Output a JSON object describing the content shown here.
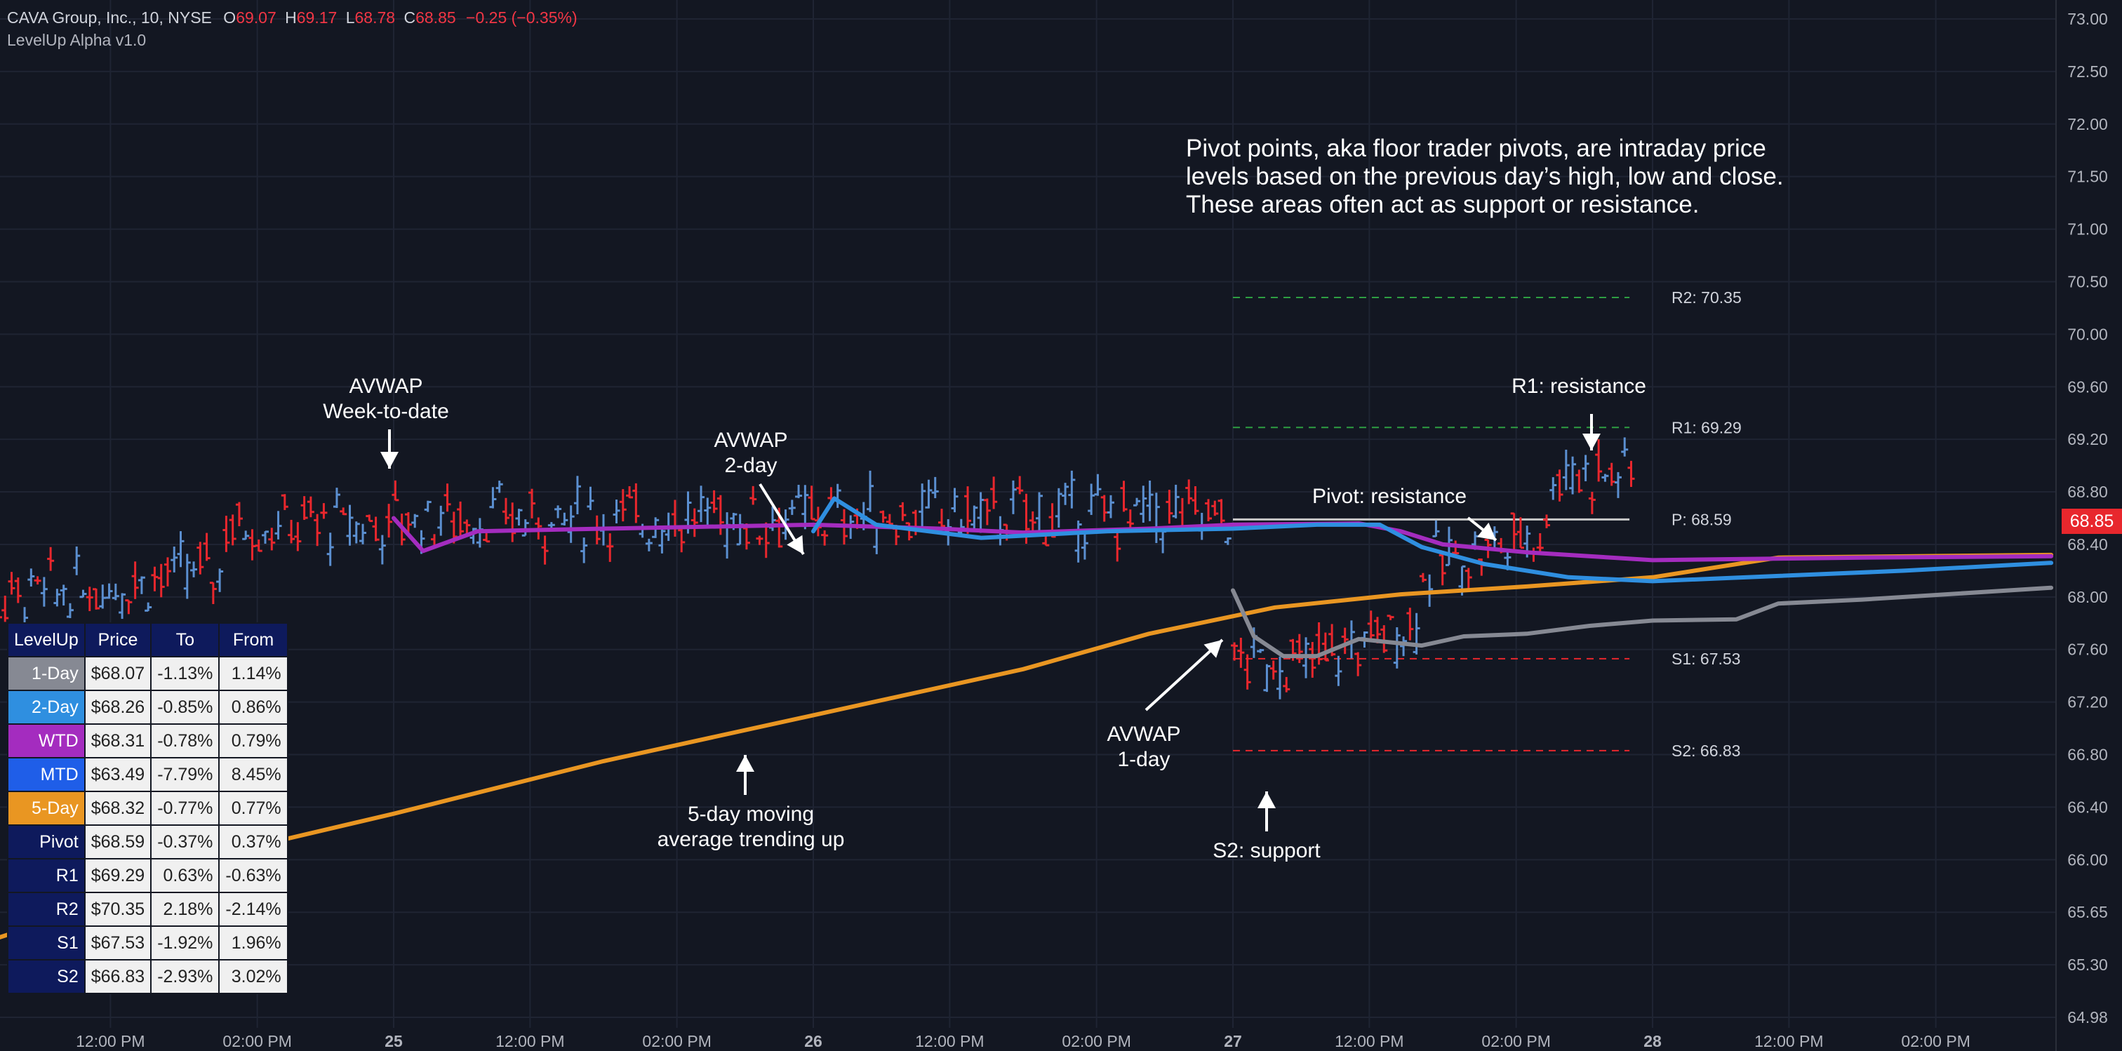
{
  "header": {
    "symbol": "CAVA Group, Inc., 10, NYSE",
    "o_label": "O",
    "o": "69.07",
    "h_label": "H",
    "h": "69.17",
    "l_label": "L",
    "l": "68.78",
    "c_label": "C",
    "c": "68.85",
    "change": "−0.25 (−0.35%)",
    "indicator": "LevelUp Alpha v1.0"
  },
  "last_price": "68.85",
  "note": {
    "line1": "Pivot points, aka floor trader pivots, are intraday price",
    "line2": "levels based on the previous day’s high, low and close.",
    "line3": "These areas often act as  support or resistance."
  },
  "annotations": {
    "avwap_wtd_1": "AVWAP",
    "avwap_wtd_2": "Week-to-date",
    "avwap_2d_1": "AVWAP",
    "avwap_2d_2": "2-day",
    "avwap_1d_1": "AVWAP",
    "avwap_1d_2": "1-day",
    "ma5_1": "5-day moving",
    "ma5_2": "average trending up",
    "s2": "S2: support",
    "pivot": "Pivot: resistance",
    "r1": "R1: resistance"
  },
  "colors": {
    "bg": "#131722",
    "grid": "#1f2433",
    "up": "#5b8fd0",
    "down": "#e8272d",
    "one_day": "#868993",
    "two_day": "#2f8fe0",
    "wtd": "#a42cbf",
    "mtd": "#1f5ee8",
    "five_day": "#e99622",
    "pivot": "#c8c8c8",
    "resistance": "#2e9e42",
    "support": "#e8272d"
  },
  "table": {
    "headers": [
      "LevelUp",
      "Price",
      "To",
      "From"
    ],
    "rows": [
      {
        "name": "1-Day",
        "price": "$68.07",
        "to": "-1.13%",
        "from": "1.14%",
        "color": "#868993"
      },
      {
        "name": "2-Day",
        "price": "$68.26",
        "to": "-0.85%",
        "from": "0.86%",
        "color": "#2f8fe0"
      },
      {
        "name": "WTD",
        "price": "$68.31",
        "to": "-0.78%",
        "from": "0.79%",
        "color": "#a42cbf"
      },
      {
        "name": "MTD",
        "price": "$63.49",
        "to": "-7.79%",
        "from": "8.45%",
        "color": "#1f5ee8"
      },
      {
        "name": "5-Day",
        "price": "$68.32",
        "to": "-0.77%",
        "from": "0.77%",
        "color": "#e99622"
      },
      {
        "name": "Pivot",
        "price": "$68.59",
        "to": "-0.37%",
        "from": "0.37%",
        "color": "#0e1a5c"
      },
      {
        "name": "R1",
        "price": "$69.29",
        "to": "0.63%",
        "from": "-0.63%",
        "color": "#0e1a5c"
      },
      {
        "name": "R2",
        "price": "$70.35",
        "to": "2.18%",
        "from": "-2.14%",
        "color": "#0e1a5c"
      },
      {
        "name": "S1",
        "price": "$67.53",
        "to": "-1.92%",
        "from": "1.96%",
        "color": "#0e1a5c"
      },
      {
        "name": "S2",
        "price": "$66.83",
        "to": "-2.93%",
        "from": "3.02%",
        "color": "#0e1a5c"
      }
    ]
  },
  "chart_data": {
    "type": "line",
    "ylim": [
      64.98,
      73.0
    ],
    "y_ticks": [
      "73.00",
      "72.50",
      "72.00",
      "71.50",
      "71.00",
      "70.50",
      "70.00",
      "69.60",
      "69.20",
      "68.80",
      "68.40",
      "68.00",
      "67.60",
      "67.20",
      "66.80",
      "66.40",
      "66.00",
      "65.65",
      "65.30",
      "64.98"
    ],
    "x_ticks": [
      "12:00 PM",
      "02:00 PM",
      "25",
      "12:00 PM",
      "02:00 PM",
      "26",
      "12:00 PM",
      "02:00 PM",
      "27",
      "12:00 PM",
      "02:00 PM",
      "28",
      "12:00 PM",
      "02:00 PM"
    ],
    "levels": [
      {
        "label": "R2: 70.35",
        "value": 70.35
      },
      {
        "label": "R1: 69.29",
        "value": 69.29
      },
      {
        "label": "P:  68.59",
        "value": 68.59
      },
      {
        "label": "S1: 67.53",
        "value": 67.53
      },
      {
        "label": "S2: 66.83",
        "value": 66.83
      }
    ],
    "series": [
      {
        "name": "5-Day",
        "points": [
          [
            -0.2,
            65.25
          ],
          [
            0.3,
            65.7
          ],
          [
            0.6,
            66.05
          ],
          [
            1.0,
            66.35
          ],
          [
            1.5,
            66.75
          ],
          [
            2.0,
            67.1
          ],
          [
            2.5,
            67.45
          ],
          [
            2.8,
            67.72
          ],
          [
            3.1,
            67.92
          ],
          [
            3.4,
            68.02
          ],
          [
            3.7,
            68.08
          ],
          [
            4.0,
            68.15
          ],
          [
            4.3,
            68.3
          ],
          [
            4.95,
            68.32
          ]
        ]
      },
      {
        "name": "WTD",
        "points": [
          [
            1.0,
            68.6
          ],
          [
            1.07,
            68.35
          ],
          [
            1.2,
            68.5
          ],
          [
            1.5,
            68.52
          ],
          [
            2.0,
            68.55
          ],
          [
            2.3,
            68.52
          ],
          [
            2.5,
            68.49
          ],
          [
            2.8,
            68.52
          ],
          [
            3.0,
            68.55
          ],
          [
            3.3,
            68.56
          ],
          [
            3.4,
            68.5
          ],
          [
            3.5,
            68.4
          ],
          [
            3.7,
            68.34
          ],
          [
            4.0,
            68.28
          ],
          [
            4.5,
            68.3
          ],
          [
            4.95,
            68.31
          ]
        ]
      },
      {
        "name": "2-Day",
        "points": [
          [
            2.0,
            68.5
          ],
          [
            2.05,
            68.75
          ],
          [
            2.15,
            68.55
          ],
          [
            2.4,
            68.45
          ],
          [
            2.7,
            68.5
          ],
          [
            3.0,
            68.52
          ],
          [
            3.2,
            68.55
          ],
          [
            3.35,
            68.55
          ],
          [
            3.45,
            68.38
          ],
          [
            3.6,
            68.25
          ],
          [
            3.8,
            68.15
          ],
          [
            4.0,
            68.12
          ],
          [
            4.3,
            68.16
          ],
          [
            4.6,
            68.2
          ],
          [
            4.95,
            68.26
          ]
        ]
      },
      {
        "name": "1-Day",
        "points": [
          [
            3.0,
            68.05
          ],
          [
            3.05,
            67.7
          ],
          [
            3.12,
            67.55
          ],
          [
            3.2,
            67.55
          ],
          [
            3.3,
            67.68
          ],
          [
            3.45,
            67.63
          ],
          [
            3.55,
            67.7
          ],
          [
            3.7,
            67.72
          ],
          [
            3.85,
            67.78
          ],
          [
            4.0,
            67.82
          ],
          [
            4.2,
            67.83
          ],
          [
            4.3,
            67.95
          ],
          [
            4.5,
            67.98
          ],
          [
            4.7,
            68.02
          ],
          [
            4.95,
            68.07
          ]
        ]
      }
    ]
  }
}
